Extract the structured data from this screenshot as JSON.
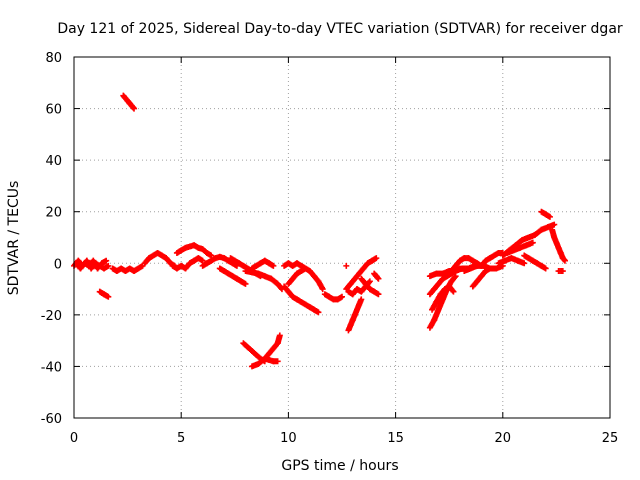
{
  "chart_data": {
    "type": "scatter",
    "title": "Day 121 of 2025, Sidereal Day-to-day VTEC variation (SDTVAR) for receiver dgar",
    "xlabel": "GPS time / hours",
    "ylabel": "SDTVAR / TECUs",
    "xlim": [
      0,
      25
    ],
    "ylim": [
      -60,
      80
    ],
    "xticks": [
      "0",
      "5",
      "10",
      "15",
      "20",
      "25"
    ],
    "yticks": [
      "-60",
      "-40",
      "-20",
      "0",
      "20",
      "40",
      "60",
      "80"
    ],
    "grid": true,
    "marker": "plus",
    "color": "#ff0000",
    "segments": [
      {
        "name": "band-early-a",
        "points": [
          [
            0.0,
            -1
          ],
          [
            0.2,
            1
          ],
          [
            0.4,
            -1
          ],
          [
            0.6,
            1
          ],
          [
            0.8,
            -2
          ],
          [
            1.0,
            0
          ],
          [
            1.2,
            -1
          ],
          [
            1.4,
            -2
          ],
          [
            1.6,
            -1
          ]
        ]
      },
      {
        "name": "band-early-b",
        "points": [
          [
            0.1,
            0
          ],
          [
            0.3,
            -2
          ],
          [
            0.5,
            0
          ],
          [
            0.7,
            -1
          ],
          [
            0.9,
            1
          ],
          [
            1.1,
            -2
          ],
          [
            1.3,
            0
          ],
          [
            1.5,
            1
          ]
        ]
      },
      {
        "name": "band-early-c",
        "points": [
          [
            1.8,
            -2
          ],
          [
            2.0,
            -3
          ],
          [
            2.2,
            -2
          ],
          [
            2.4,
            -3
          ],
          [
            2.6,
            -2
          ],
          [
            2.8,
            -3
          ],
          [
            3.0,
            -2
          ],
          [
            3.2,
            -1
          ]
        ]
      },
      {
        "name": "high-arc",
        "points": [
          [
            2.3,
            65
          ],
          [
            2.4,
            64
          ],
          [
            2.5,
            63
          ],
          [
            2.6,
            62
          ],
          [
            2.7,
            61
          ],
          [
            2.8,
            60
          ]
        ]
      },
      {
        "name": "low-arc-early",
        "points": [
          [
            1.2,
            -11
          ],
          [
            1.3,
            -11.5
          ],
          [
            1.4,
            -12
          ],
          [
            1.5,
            -12.5
          ],
          [
            1.6,
            -13
          ]
        ]
      },
      {
        "name": "band-3h",
        "points": [
          [
            3.3,
            0
          ],
          [
            3.5,
            2
          ],
          [
            3.7,
            3
          ],
          [
            3.9,
            4
          ],
          [
            4.1,
            3
          ],
          [
            4.3,
            2
          ],
          [
            4.5,
            0
          ],
          [
            4.7,
            -1
          ]
        ]
      },
      {
        "name": "band-4h",
        "points": [
          [
            4.6,
            -1
          ],
          [
            4.8,
            -2
          ],
          [
            5.0,
            -1
          ],
          [
            5.2,
            -2
          ],
          [
            5.4,
            0
          ],
          [
            5.6,
            1
          ],
          [
            5.8,
            2
          ],
          [
            6.0,
            1
          ]
        ]
      },
      {
        "name": "rise-5h",
        "points": [
          [
            4.8,
            4
          ],
          [
            5.0,
            5
          ],
          [
            5.2,
            6
          ],
          [
            5.4,
            6.5
          ],
          [
            5.6,
            7
          ],
          [
            5.8,
            6
          ],
          [
            6.0,
            5.5
          ],
          [
            6.2,
            4
          ],
          [
            6.4,
            3
          ]
        ]
      },
      {
        "name": "band-6h",
        "points": [
          [
            6.0,
            -1
          ],
          [
            6.2,
            0
          ],
          [
            6.4,
            1
          ],
          [
            6.6,
            2
          ],
          [
            6.8,
            2.5
          ],
          [
            7.0,
            2
          ],
          [
            7.2,
            1
          ],
          [
            7.4,
            0
          ],
          [
            7.6,
            -1
          ]
        ]
      },
      {
        "name": "fall-7h",
        "points": [
          [
            6.8,
            -2
          ],
          [
            7.0,
            -3
          ],
          [
            7.2,
            -4
          ],
          [
            7.4,
            -5
          ],
          [
            7.6,
            -6
          ],
          [
            7.8,
            -7
          ],
          [
            8.0,
            -8
          ]
        ]
      },
      {
        "name": "band-7h-b",
        "points": [
          [
            7.3,
            2
          ],
          [
            7.5,
            1
          ],
          [
            7.7,
            0
          ],
          [
            7.9,
            -1
          ],
          [
            8.1,
            -2
          ],
          [
            8.3,
            -3
          ],
          [
            8.5,
            -4
          ],
          [
            8.7,
            -5
          ]
        ]
      },
      {
        "name": "band-8h",
        "points": [
          [
            8.0,
            -3
          ],
          [
            8.3,
            -3.5
          ],
          [
            8.6,
            -4
          ],
          [
            8.9,
            -5
          ],
          [
            9.2,
            -6
          ],
          [
            9.5,
            -8
          ],
          [
            9.7,
            -10
          ]
        ]
      },
      {
        "name": "rise-8h",
        "points": [
          [
            8.3,
            -2
          ],
          [
            8.5,
            -1
          ],
          [
            8.7,
            0
          ],
          [
            8.9,
            1
          ],
          [
            9.1,
            0
          ],
          [
            9.3,
            -1
          ]
        ]
      },
      {
        "name": "v-left",
        "points": [
          [
            7.9,
            -31
          ],
          [
            8.1,
            -32.5
          ],
          [
            8.3,
            -34
          ],
          [
            8.5,
            -35.5
          ],
          [
            8.7,
            -37
          ],
          [
            8.9,
            -38
          ]
        ]
      },
      {
        "name": "v-right",
        "points": [
          [
            8.3,
            -40
          ],
          [
            8.6,
            -39
          ],
          [
            8.9,
            -37
          ],
          [
            9.1,
            -35
          ],
          [
            9.3,
            -33
          ],
          [
            9.5,
            -31
          ],
          [
            9.6,
            -28
          ]
        ]
      },
      {
        "name": "v-bottom",
        "points": [
          [
            8.9,
            -37
          ],
          [
            9.1,
            -37.5
          ],
          [
            9.3,
            -38
          ],
          [
            9.5,
            -38
          ]
        ]
      },
      {
        "name": "band-10h",
        "points": [
          [
            9.8,
            -1
          ],
          [
            10.0,
            0
          ],
          [
            10.2,
            -1
          ],
          [
            10.4,
            0
          ],
          [
            10.6,
            -1
          ],
          [
            10.8,
            -2
          ]
        ]
      },
      {
        "name": "fall-10h",
        "points": [
          [
            9.8,
            -9
          ],
          [
            10.0,
            -11
          ],
          [
            10.2,
            -13
          ],
          [
            10.4,
            -14
          ],
          [
            10.6,
            -15
          ],
          [
            10.8,
            -16
          ],
          [
            11.0,
            -17
          ],
          [
            11.2,
            -18
          ],
          [
            11.4,
            -19
          ]
        ]
      },
      {
        "name": "rise-10h",
        "points": [
          [
            10.0,
            -8
          ],
          [
            10.2,
            -6
          ],
          [
            10.4,
            -4
          ],
          [
            10.6,
            -3
          ],
          [
            10.8,
            -2
          ],
          [
            11.0,
            -3
          ],
          [
            11.2,
            -5
          ],
          [
            11.4,
            -7
          ],
          [
            11.6,
            -10
          ]
        ]
      },
      {
        "name": "band-11h",
        "points": [
          [
            11.7,
            -12
          ],
          [
            11.9,
            -13
          ],
          [
            12.1,
            -14
          ],
          [
            12.3,
            -14
          ],
          [
            12.5,
            -13
          ]
        ]
      },
      {
        "name": "mark-12-7",
        "points": [
          [
            12.7,
            -1
          ]
        ]
      },
      {
        "name": "rise-13h-a",
        "points": [
          [
            12.8,
            -26
          ],
          [
            12.9,
            -24
          ],
          [
            13.0,
            -22
          ],
          [
            13.1,
            -20
          ],
          [
            13.2,
            -18
          ],
          [
            13.3,
            -16
          ],
          [
            13.4,
            -14
          ]
        ]
      },
      {
        "name": "rise-13h-b",
        "points": [
          [
            12.7,
            -10
          ],
          [
            12.9,
            -8
          ],
          [
            13.1,
            -6
          ],
          [
            13.3,
            -4
          ],
          [
            13.5,
            -2
          ],
          [
            13.7,
            0
          ],
          [
            13.9,
            1
          ],
          [
            14.1,
            2
          ]
        ]
      },
      {
        "name": "cluster-13h",
        "points": [
          [
            12.8,
            -11
          ],
          [
            13.0,
            -12
          ],
          [
            13.2,
            -10
          ],
          [
            13.4,
            -11
          ],
          [
            13.6,
            -9
          ],
          [
            13.8,
            -7
          ]
        ]
      },
      {
        "name": "fall-14h",
        "points": [
          [
            13.4,
            -6
          ],
          [
            13.6,
            -8
          ],
          [
            13.8,
            -10
          ],
          [
            14.0,
            -11
          ],
          [
            14.2,
            -12
          ]
        ]
      },
      {
        "name": "short-14h",
        "points": [
          [
            14.0,
            -4
          ],
          [
            14.1,
            -5
          ],
          [
            14.2,
            -6
          ]
        ]
      },
      {
        "name": "rise-17h-a",
        "points": [
          [
            16.6,
            -25
          ],
          [
            16.8,
            -22
          ],
          [
            17.0,
            -18
          ],
          [
            17.2,
            -14
          ],
          [
            17.4,
            -10
          ],
          [
            17.6,
            -7
          ],
          [
            17.8,
            -5
          ]
        ]
      },
      {
        "name": "rise-17h-b",
        "points": [
          [
            16.6,
            -12
          ],
          [
            16.8,
            -10
          ],
          [
            17.0,
            -8
          ],
          [
            17.2,
            -6
          ],
          [
            17.4,
            -5
          ],
          [
            17.6,
            -4
          ],
          [
            17.8,
            -3
          ],
          [
            18.0,
            -2
          ]
        ]
      },
      {
        "name": "rise-17h-c",
        "points": [
          [
            16.7,
            -18
          ],
          [
            16.9,
            -15
          ],
          [
            17.1,
            -12
          ],
          [
            17.3,
            -10
          ],
          [
            17.5,
            -9
          ],
          [
            17.7,
            -11
          ]
        ]
      },
      {
        "name": "arc-18h",
        "points": [
          [
            17.6,
            -3
          ],
          [
            17.8,
            -1
          ],
          [
            18.0,
            1
          ],
          [
            18.2,
            2
          ],
          [
            18.4,
            2
          ],
          [
            18.6,
            1
          ],
          [
            18.8,
            0
          ],
          [
            19.0,
            -1
          ]
        ]
      },
      {
        "name": "rise-16-18h",
        "points": [
          [
            16.6,
            -5
          ],
          [
            16.9,
            -4
          ],
          [
            17.2,
            -4
          ],
          [
            17.5,
            -3
          ],
          [
            17.8,
            -3
          ],
          [
            18.1,
            -2
          ],
          [
            18.4,
            -2
          ],
          [
            18.7,
            -1
          ]
        ]
      },
      {
        "name": "band-19h",
        "points": [
          [
            18.2,
            -3
          ],
          [
            18.5,
            -2
          ],
          [
            18.8,
            -1
          ],
          [
            19.1,
            -1
          ],
          [
            19.4,
            -2
          ],
          [
            19.7,
            -2
          ],
          [
            20.0,
            -1
          ]
        ]
      },
      {
        "name": "fall-19h",
        "points": [
          [
            18.6,
            -9
          ],
          [
            18.8,
            -7
          ],
          [
            19.0,
            -5
          ],
          [
            19.2,
            -3
          ],
          [
            19.4,
            -2
          ]
        ]
      },
      {
        "name": "rise-19h",
        "points": [
          [
            19.0,
            -1
          ],
          [
            19.2,
            1
          ],
          [
            19.4,
            2
          ],
          [
            19.6,
            3
          ],
          [
            19.8,
            4
          ],
          [
            20.0,
            4
          ]
        ]
      },
      {
        "name": "band-20h",
        "points": [
          [
            19.8,
            0
          ],
          [
            20.1,
            1
          ],
          [
            20.4,
            2
          ],
          [
            20.7,
            1
          ],
          [
            21.0,
            0
          ]
        ]
      },
      {
        "name": "rise-20-22h",
        "points": [
          [
            20.0,
            3
          ],
          [
            20.3,
            5
          ],
          [
            20.6,
            7
          ],
          [
            20.9,
            9
          ],
          [
            21.2,
            10
          ],
          [
            21.5,
            11
          ],
          [
            21.8,
            13
          ],
          [
            22.1,
            14
          ],
          [
            22.4,
            15
          ]
        ]
      },
      {
        "name": "rise-20-21h",
        "points": [
          [
            20.2,
            4
          ],
          [
            20.5,
            5
          ],
          [
            20.8,
            6
          ],
          [
            21.1,
            7
          ],
          [
            21.4,
            8
          ]
        ]
      },
      {
        "name": "short-22h",
        "points": [
          [
            21.8,
            20
          ],
          [
            22.0,
            19
          ],
          [
            22.2,
            18
          ]
        ]
      },
      {
        "name": "fall-21-22h",
        "points": [
          [
            21.0,
            3
          ],
          [
            21.2,
            2
          ],
          [
            21.4,
            1
          ],
          [
            21.6,
            0
          ],
          [
            21.8,
            -1
          ],
          [
            22.0,
            -2
          ]
        ]
      },
      {
        "name": "fall-22-23h",
        "points": [
          [
            22.3,
            13
          ],
          [
            22.4,
            10
          ],
          [
            22.5,
            8
          ],
          [
            22.6,
            6
          ],
          [
            22.7,
            4
          ],
          [
            22.8,
            2
          ],
          [
            22.9,
            1
          ]
        ]
      },
      {
        "name": "mark-22-7",
        "points": [
          [
            22.6,
            -3
          ],
          [
            22.8,
            -3
          ]
        ]
      }
    ]
  }
}
